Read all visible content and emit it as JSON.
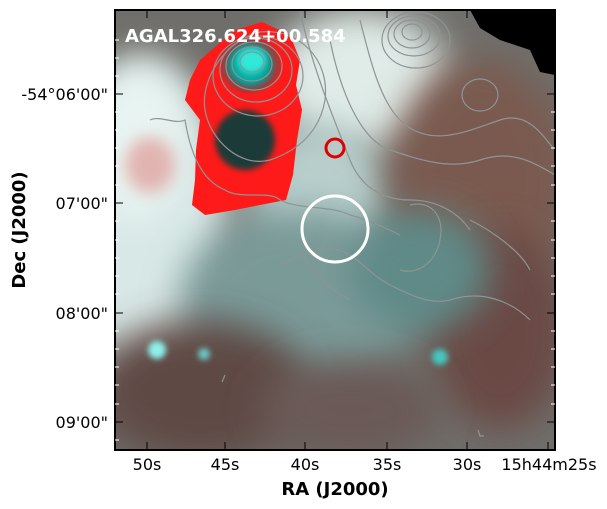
{
  "figure": {
    "source_name": "AGAL326.624+00.584",
    "x_axis_title": "RA (J2000)",
    "y_axis_title": "Dec (J2000)",
    "x_tick_labels": [
      "50s",
      "45s",
      "40s",
      "35s",
      "30s",
      "15h44m25s"
    ],
    "y_tick_labels": [
      "-54°06'00\"",
      "07'00\"",
      "08'00\"",
      "09'00\""
    ],
    "colors": {
      "frame": "#000000",
      "contour": "#9aa0a0",
      "red_marker": "#e00000",
      "white_marker": "#ffffff",
      "red_emission": "#ff1a1a",
      "cyan_emission": "#30d8d0"
    }
  }
}
